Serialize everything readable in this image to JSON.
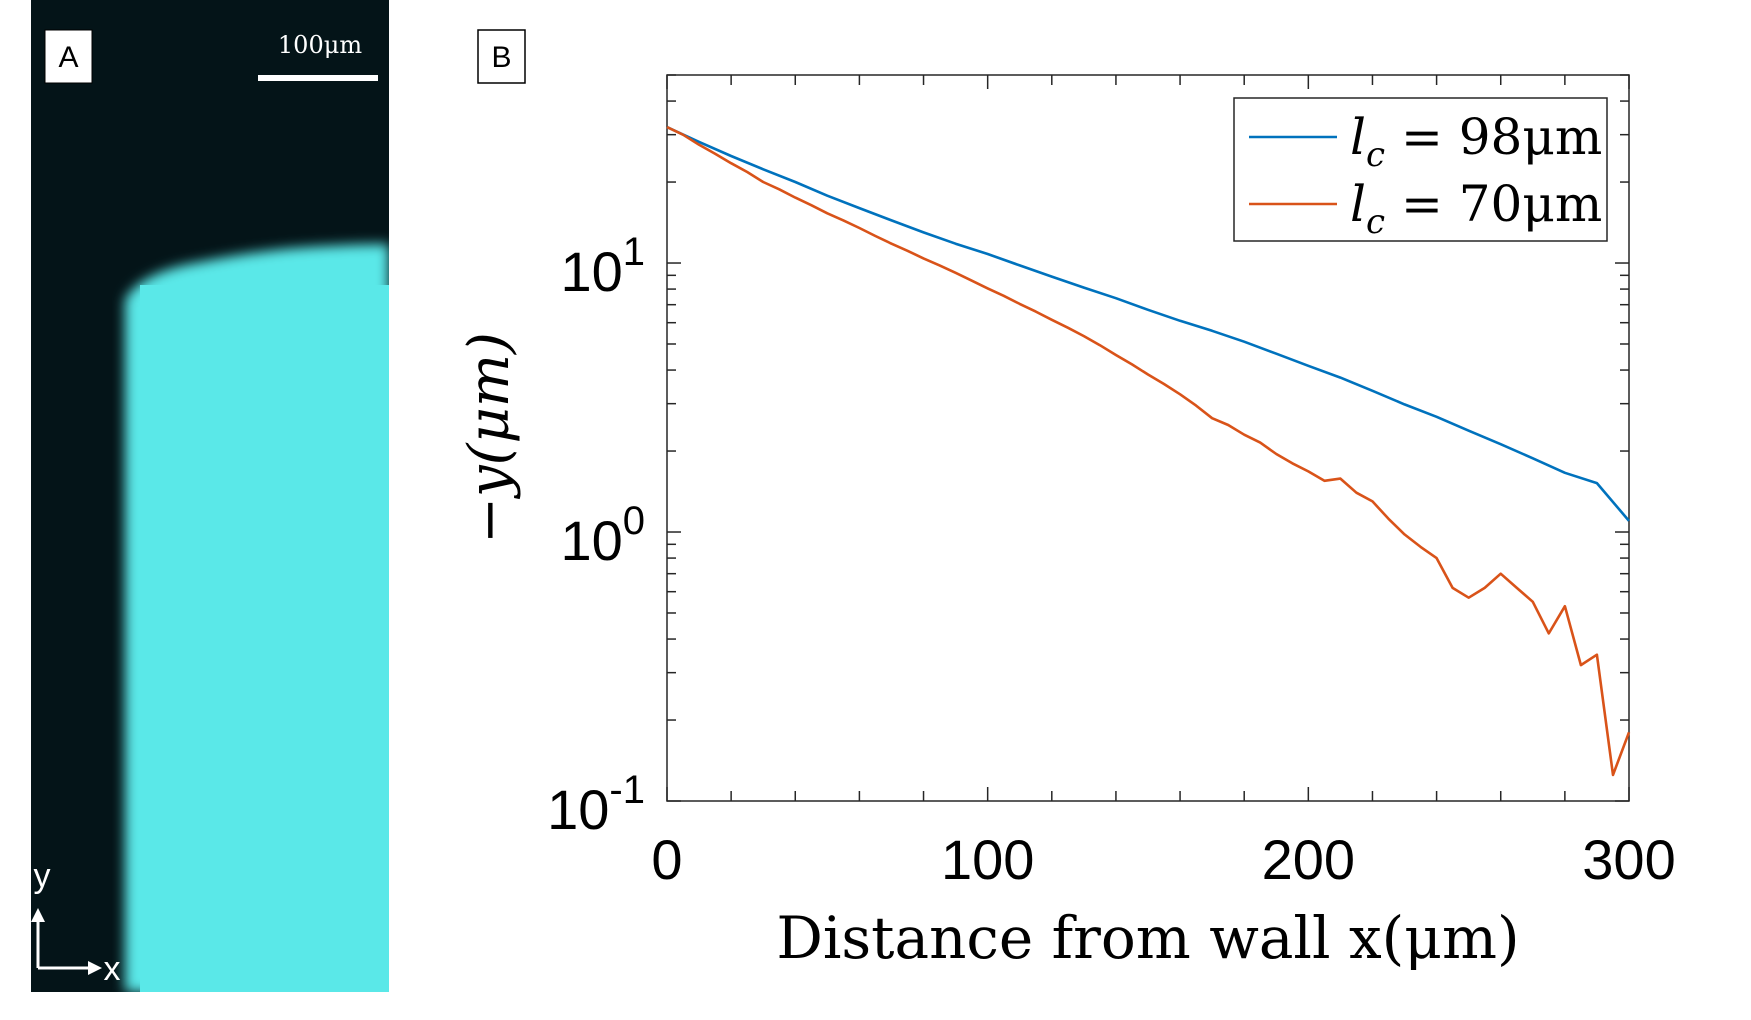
{
  "panel_a": {
    "label": "A",
    "scale_bar_label": "100μm",
    "axis_x_label": "x",
    "axis_y_label": "y",
    "colors": {
      "fluid": "#5ae8e8",
      "background": "#041418"
    }
  },
  "panel_b": {
    "label": "B"
  },
  "chart_data": {
    "type": "line",
    "title": "",
    "xlabel": "Distance from wall x(μm)",
    "ylabel": "−y(μm)",
    "xscale": "linear",
    "yscale": "log",
    "xlim": [
      0,
      300
    ],
    "ylim": [
      0.1,
      50
    ],
    "grid": false,
    "legend_position": "top-right",
    "x_ticks": [
      {
        "value": 0,
        "label": "0"
      },
      {
        "value": 100,
        "label": "100"
      },
      {
        "value": 200,
        "label": "200"
      },
      {
        "value": 300,
        "label": "300"
      }
    ],
    "y_ticks": [
      {
        "value": 0.1,
        "base": "10",
        "exp": "-1"
      },
      {
        "value": 1,
        "base": "10",
        "exp": "0"
      },
      {
        "value": 10,
        "base": "10",
        "exp": "1"
      }
    ],
    "x_minor_step": 20,
    "series": [
      {
        "name": "l_c = 98μm",
        "legend_sym": "l",
        "legend_sub": "c",
        "legend_rest": " = 98μm",
        "color": "#0072bd",
        "x": [
          0,
          10,
          20,
          30,
          40,
          50,
          60,
          70,
          80,
          90,
          100,
          110,
          120,
          130,
          140,
          150,
          160,
          170,
          180,
          190,
          200,
          210,
          220,
          230,
          240,
          250,
          260,
          270,
          280,
          290,
          300
        ],
        "y": [
          32,
          28.2,
          25.0,
          22.3,
          20.0,
          17.8,
          16.0,
          14.4,
          13.0,
          11.8,
          10.8,
          9.8,
          8.9,
          8.1,
          7.4,
          6.7,
          6.1,
          5.6,
          5.1,
          4.6,
          4.15,
          3.75,
          3.35,
          2.98,
          2.68,
          2.38,
          2.12,
          1.88,
          1.66,
          1.52,
          1.1
        ]
      },
      {
        "name": "l_c = 70μm",
        "legend_sym": "l",
        "legend_sub": "c",
        "legend_rest": " = 70μm",
        "color": "#d95319",
        "x": [
          0,
          5,
          10,
          15,
          20,
          25,
          30,
          35,
          40,
          45,
          50,
          55,
          60,
          65,
          70,
          75,
          80,
          85,
          90,
          95,
          100,
          105,
          110,
          115,
          120,
          125,
          130,
          135,
          140,
          145,
          150,
          155,
          160,
          165,
          170,
          175,
          180,
          185,
          190,
          195,
          200,
          205,
          210,
          215,
          220,
          225,
          230,
          235,
          240,
          245,
          250,
          255,
          260,
          265,
          270,
          275,
          280,
          285,
          290,
          295,
          300
        ],
        "y": [
          32,
          30,
          27.5,
          25.5,
          23.5,
          21.8,
          20.0,
          18.8,
          17.5,
          16.4,
          15.3,
          14.4,
          13.5,
          12.6,
          11.8,
          11.1,
          10.4,
          9.8,
          9.2,
          8.6,
          8.05,
          7.55,
          7.05,
          6.6,
          6.15,
          5.75,
          5.35,
          4.95,
          4.55,
          4.2,
          3.85,
          3.55,
          3.25,
          2.95,
          2.65,
          2.5,
          2.3,
          2.15,
          1.95,
          1.8,
          1.68,
          1.55,
          1.58,
          1.4,
          1.3,
          1.12,
          0.98,
          0.88,
          0.8,
          0.62,
          0.57,
          0.62,
          0.7,
          0.62,
          0.55,
          0.42,
          0.53,
          0.32,
          0.35,
          0.125,
          0.18
        ]
      }
    ]
  }
}
